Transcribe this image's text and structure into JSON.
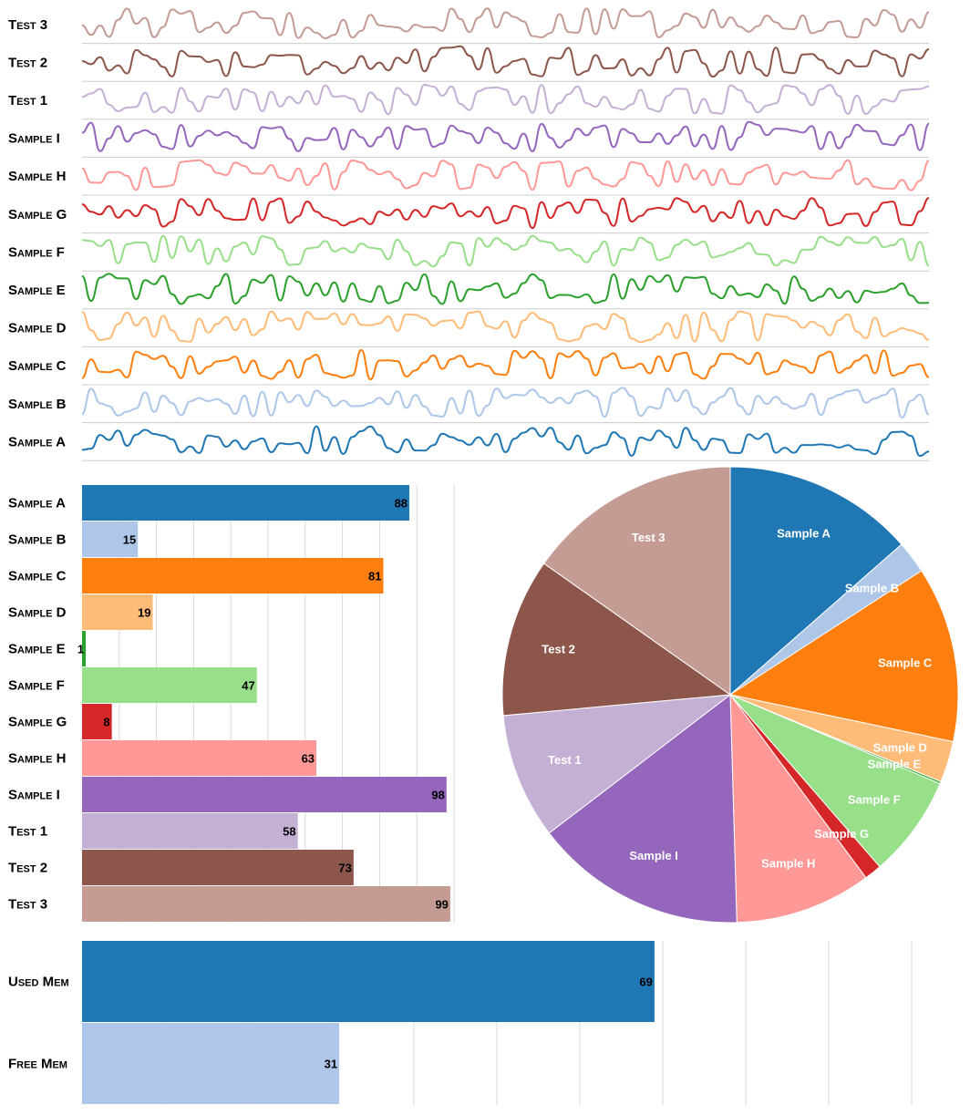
{
  "chart_data": [
    {
      "type": "line",
      "series": [
        {
          "name": "Test 3",
          "color": "#c49c94"
        },
        {
          "name": "Test 2",
          "color": "#8c564b"
        },
        {
          "name": "Test 1",
          "color": "#c5b0d5"
        },
        {
          "name": "Sample I",
          "color": "#9467bd"
        },
        {
          "name": "Sample H",
          "color": "#ff9896"
        },
        {
          "name": "Sample G",
          "color": "#d62728"
        },
        {
          "name": "Sample F",
          "color": "#98df8a"
        },
        {
          "name": "Sample E",
          "color": "#2ca02c"
        },
        {
          "name": "Sample D",
          "color": "#ffbb78"
        },
        {
          "name": "Sample C",
          "color": "#ff7f0e"
        },
        {
          "name": "Sample B",
          "color": "#aec7e8"
        },
        {
          "name": "Sample A",
          "color": "#1f77b4"
        }
      ],
      "grid": true
    },
    {
      "type": "bar",
      "orientation": "horizontal",
      "categories": [
        "Sample A",
        "Sample B",
        "Sample C",
        "Sample D",
        "Sample E",
        "Sample F",
        "Sample G",
        "Sample H",
        "Sample I",
        "Test 1",
        "Test 2",
        "Test 3"
      ],
      "values": [
        88,
        15,
        81,
        19,
        1,
        47,
        8,
        63,
        98,
        58,
        73,
        99
      ],
      "colors": [
        "#1f77b4",
        "#aec7e8",
        "#ff7f0e",
        "#ffbb78",
        "#2ca02c",
        "#98df8a",
        "#d62728",
        "#ff9896",
        "#9467bd",
        "#c5b0d5",
        "#8c564b",
        "#c49c94"
      ],
      "xlim": [
        0,
        100
      ],
      "grid": true
    },
    {
      "type": "pie",
      "categories": [
        "Sample A",
        "Sample B",
        "Sample C",
        "Sample D",
        "Sample E",
        "Sample F",
        "Sample G",
        "Sample H",
        "Sample I",
        "Test 1",
        "Test 2",
        "Test 3"
      ],
      "values": [
        88,
        15,
        81,
        19,
        1,
        47,
        8,
        63,
        98,
        58,
        73,
        99
      ],
      "colors": [
        "#1f77b4",
        "#aec7e8",
        "#ff7f0e",
        "#ffbb78",
        "#2ca02c",
        "#98df8a",
        "#d62728",
        "#ff9896",
        "#9467bd",
        "#c5b0d5",
        "#8c564b",
        "#c49c94"
      ]
    },
    {
      "type": "bar",
      "orientation": "horizontal",
      "categories": [
        "Used Mem",
        "Free Mem"
      ],
      "values": [
        69,
        31
      ],
      "colors": [
        "#1f77b4",
        "#aec7e8"
      ],
      "xlim": [
        0,
        100
      ],
      "grid": true
    }
  ]
}
